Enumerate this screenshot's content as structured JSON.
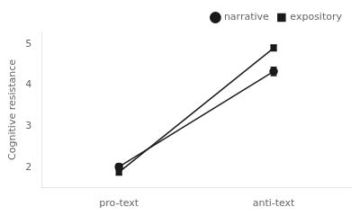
{
  "chart_data": {
    "type": "line",
    "categories": [
      "pro-text",
      "anti-text"
    ],
    "series": [
      {
        "name": "narrative",
        "color": "#1a1a1a",
        "marker": "circle",
        "line_style": "solid",
        "values": [
          2.01,
          4.33
        ],
        "yerr": [
          0.07,
          0.1
        ]
      },
      {
        "name": "expository",
        "color": "#1a1a1a",
        "marker": "square",
        "line_style": "solid",
        "values": [
          1.88,
          4.9
        ],
        "yerr": [
          0.07,
          0.07
        ]
      }
    ],
    "ylabel": "Cognitive resistance",
    "ylim": [
      1.5,
      5.3
    ],
    "yticks": [
      2,
      3,
      4,
      5
    ],
    "grid": false,
    "legend": "upper right"
  }
}
